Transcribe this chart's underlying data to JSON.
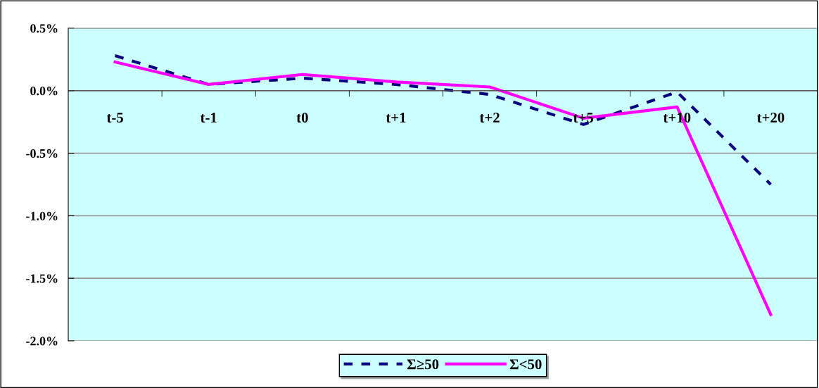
{
  "chart_data": {
    "type": "line",
    "categories": [
      "t-5",
      "t-1",
      "t0",
      "t+1",
      "t+2",
      "t+5",
      "t+10",
      "t+20"
    ],
    "series": [
      {
        "name": "Σ≥50",
        "color": "#000080",
        "line_style": "dashed",
        "values": [
          0.28,
          0.05,
          0.1,
          0.05,
          -0.03,
          -0.27,
          -0.01,
          -0.75
        ]
      },
      {
        "name": "Σ<50",
        "color": "#ff00ff",
        "line_style": "solid",
        "values": [
          0.23,
          0.05,
          0.13,
          0.07,
          0.03,
          -0.22,
          -0.13,
          -1.79
        ]
      }
    ],
    "ylim": [
      -2.0,
      0.5
    ],
    "yticks": [
      {
        "value": -2.0,
        "label": "-2.0%"
      },
      {
        "value": -1.5,
        "label": "-1.5%"
      },
      {
        "value": -1.0,
        "label": "-1.0%"
      },
      {
        "value": -0.5,
        "label": "-0.5%"
      },
      {
        "value": 0.0,
        "label": "0.0%"
      },
      {
        "value": 0.5,
        "label": "0.5%"
      }
    ],
    "grid": "y",
    "legend": "bottom",
    "marker": "none"
  }
}
